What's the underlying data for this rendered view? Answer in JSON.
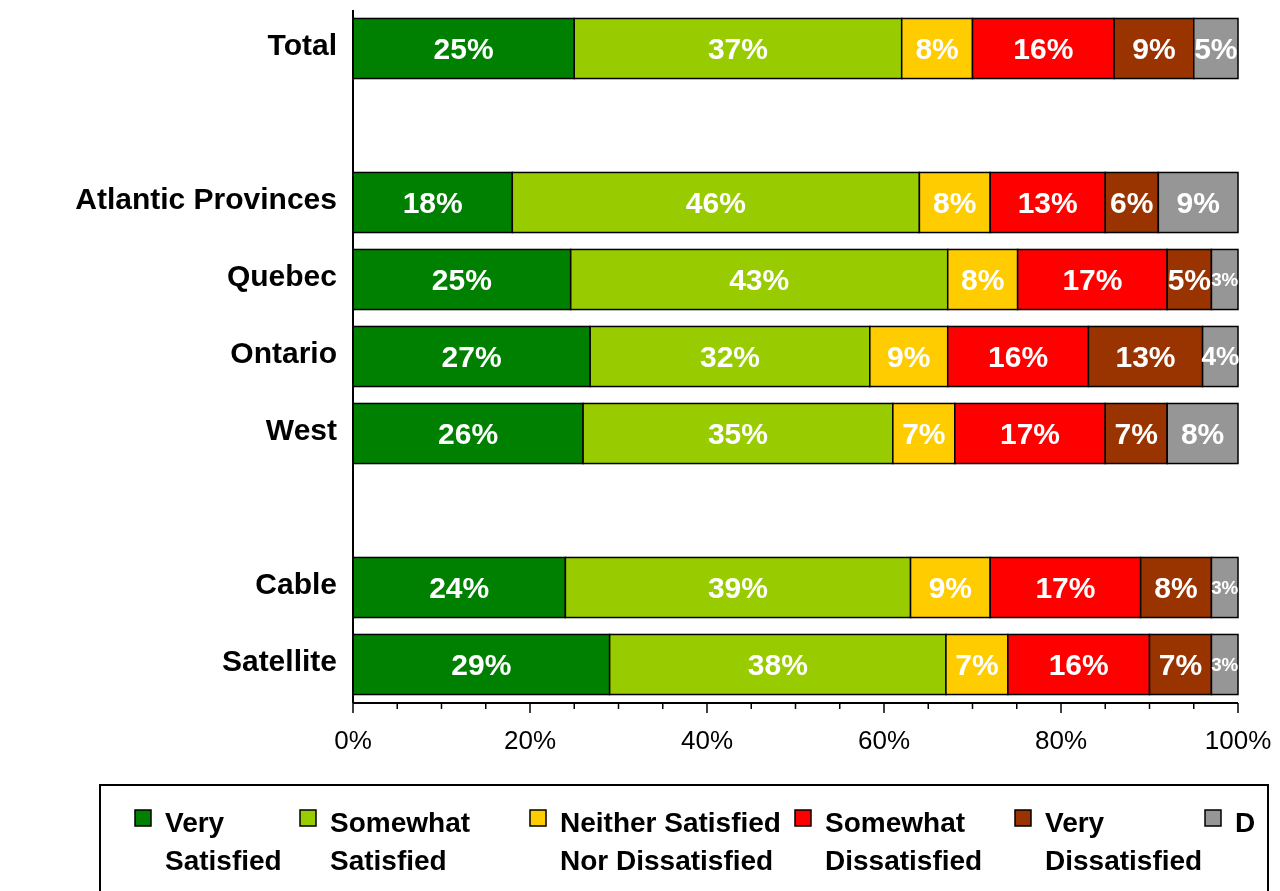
{
  "chart_data": {
    "type": "bar",
    "orientation": "horizontal",
    "stacked": true,
    "categories": [
      "Total",
      null,
      "Atlantic Provinces",
      "Quebec",
      "Ontario",
      "West",
      null,
      "Cable",
      "Satellite"
    ],
    "xlim": [
      0,
      100
    ],
    "xticks": [
      {
        "value": 0,
        "label": "0%"
      },
      {
        "value": 5,
        "label": null
      },
      {
        "value": 10,
        "label": null
      },
      {
        "value": 15,
        "label": null
      },
      {
        "value": 20,
        "label": "20%"
      },
      {
        "value": 25,
        "label": null
      },
      {
        "value": 30,
        "label": null
      },
      {
        "value": 35,
        "label": null
      },
      {
        "value": 40,
        "label": "40%"
      },
      {
        "value": 45,
        "label": null
      },
      {
        "value": 50,
        "label": null
      },
      {
        "value": 55,
        "label": null
      },
      {
        "value": 60,
        "label": "60%"
      },
      {
        "value": 65,
        "label": null
      },
      {
        "value": 70,
        "label": null
      },
      {
        "value": 75,
        "label": null
      },
      {
        "value": 80,
        "label": "80%"
      },
      {
        "value": 85,
        "label": null
      },
      {
        "value": 90,
        "label": null
      },
      {
        "value": 95,
        "label": null
      },
      {
        "value": 100,
        "label": "100%"
      }
    ],
    "legend": "bottom",
    "grid": false,
    "data_labels": true,
    "series": [
      {
        "name": "Very\nSatisfied",
        "color": "#008000",
        "values": [
          25,
          null,
          18,
          24.6,
          26.8,
          26,
          null,
          24,
          29
        ],
        "value_labels": [
          "25%",
          null,
          "18%",
          "25%",
          "27%",
          "26%",
          null,
          "24%",
          "29%"
        ]
      },
      {
        "name": "Somewhat\nSatisfied",
        "color": "#99cc00",
        "values": [
          37,
          null,
          46,
          42.6,
          31.6,
          35,
          null,
          39,
          38
        ],
        "value_labels": [
          "37%",
          null,
          "46%",
          "43%",
          "32%",
          "35%",
          null,
          "39%",
          "38%"
        ]
      },
      {
        "name": "Neither Satisfied\nNor Dissatisfied",
        "color": "#ffcc00",
        "values": [
          8,
          null,
          8,
          7.9,
          8.8,
          7,
          null,
          9,
          7
        ],
        "value_labels": [
          "8%",
          null,
          "8%",
          "8%",
          "9%",
          "7%",
          null,
          "9%",
          "7%"
        ]
      },
      {
        "name": "Somewhat\nDissatisfied",
        "color": "#ff0000",
        "values": [
          16,
          null,
          13,
          16.9,
          15.9,
          17,
          null,
          17,
          16
        ],
        "value_labels": [
          "16%",
          null,
          "13%",
          "17%",
          "16%",
          "17%",
          null,
          "17%",
          "16%"
        ]
      },
      {
        "name": "Very\nDissatisfied",
        "color": "#993300",
        "values": [
          9,
          null,
          6,
          5,
          12.9,
          7,
          null,
          8,
          7
        ],
        "value_labels": [
          "9%",
          null,
          "6%",
          "5%",
          "13%",
          "7%",
          null,
          "8%",
          "7%"
        ]
      },
      {
        "name": "D",
        "color": "#969696",
        "values": [
          5,
          null,
          9,
          3,
          4,
          8,
          null,
          3,
          3
        ],
        "value_labels": [
          "5%",
          null,
          "9%",
          "3%",
          "4%",
          "8%",
          null,
          "3%",
          "3%"
        ]
      }
    ]
  }
}
